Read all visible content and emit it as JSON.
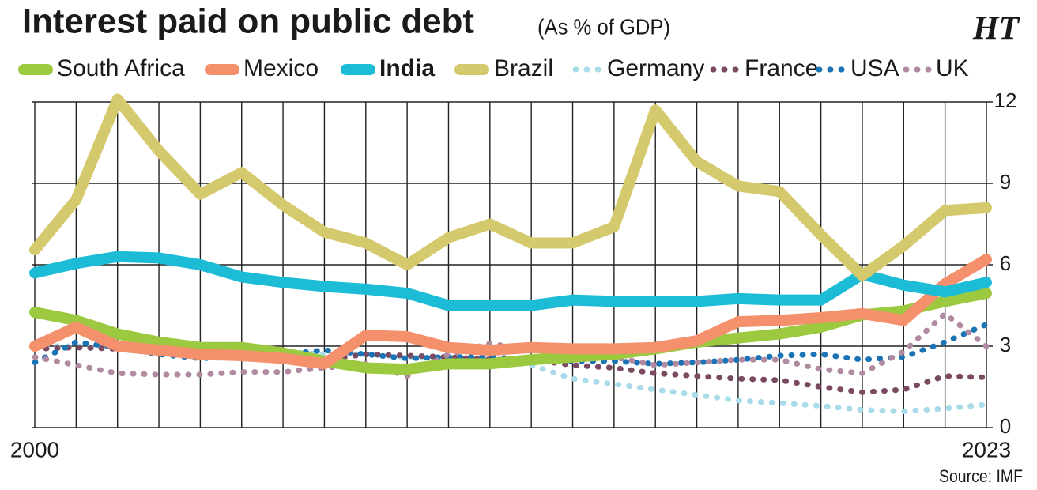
{
  "chart_data": {
    "type": "line",
    "title": "Interest paid on public debt",
    "subtitle": "(As % of GDP)",
    "logo": "HT",
    "source": "Source: IMF",
    "x": [
      2000,
      2001,
      2002,
      2003,
      2004,
      2005,
      2006,
      2007,
      2008,
      2009,
      2010,
      2011,
      2012,
      2013,
      2014,
      2015,
      2016,
      2017,
      2018,
      2019,
      2020,
      2021,
      2022,
      2023
    ],
    "xlim": [
      2000,
      2023
    ],
    "xticks": [
      2000,
      2023
    ],
    "ylim": [
      0,
      12
    ],
    "yticks": [
      0,
      3,
      6,
      9,
      12
    ],
    "grid": true,
    "series": [
      {
        "name": "South Africa",
        "color": "#9dc940",
        "dashed": false,
        "values": [
          4.25,
          3.95,
          3.45,
          3.15,
          2.95,
          2.95,
          2.75,
          2.45,
          2.2,
          2.15,
          2.35,
          2.35,
          2.5,
          2.6,
          2.7,
          2.9,
          3.15,
          3.3,
          3.45,
          3.7,
          4.15,
          4.3,
          4.65,
          4.95
        ]
      },
      {
        "name": "Mexico",
        "color": "#f4906b",
        "dashed": false,
        "values": [
          3.0,
          3.7,
          3.0,
          2.85,
          2.7,
          2.65,
          2.55,
          2.35,
          3.4,
          3.35,
          2.95,
          2.85,
          2.95,
          2.9,
          2.9,
          2.95,
          3.2,
          3.9,
          3.95,
          4.05,
          4.2,
          3.95,
          5.3,
          6.2
        ]
      },
      {
        "name": "India",
        "color": "#1cbcd6",
        "dashed": false,
        "bold": true,
        "values": [
          5.7,
          6.05,
          6.3,
          6.25,
          6.0,
          5.55,
          5.35,
          5.2,
          5.1,
          4.95,
          4.5,
          4.5,
          4.5,
          4.7,
          4.65,
          4.65,
          4.65,
          4.75,
          4.7,
          4.7,
          5.65,
          5.25,
          5.0,
          5.35
        ]
      },
      {
        "name": "Brazil",
        "color": "#d4c96c",
        "dashed": false,
        "values": [
          6.55,
          8.4,
          12.1,
          10.2,
          8.6,
          9.4,
          8.2,
          7.2,
          6.8,
          6.0,
          7.0,
          7.5,
          6.8,
          6.8,
          7.4,
          11.7,
          9.8,
          8.9,
          8.7,
          7.1,
          5.6,
          6.7,
          8.0,
          8.1
        ]
      },
      {
        "name": "Germany",
        "color": "#a9dbe8",
        "dashed": true,
        "values": [
          3.0,
          3.0,
          2.9,
          2.9,
          2.8,
          2.8,
          2.8,
          2.7,
          2.7,
          2.6,
          2.6,
          2.5,
          2.3,
          1.8,
          1.6,
          1.4,
          1.2,
          1.0,
          0.9,
          0.8,
          0.65,
          0.6,
          0.7,
          0.85
        ]
      },
      {
        "name": "France",
        "color": "#7a4a62",
        "dashed": true,
        "values": [
          2.9,
          2.95,
          2.9,
          2.8,
          2.75,
          2.7,
          2.6,
          2.5,
          2.7,
          2.65,
          2.6,
          2.5,
          2.5,
          2.3,
          2.2,
          2.0,
          1.9,
          1.8,
          1.75,
          1.5,
          1.3,
          1.4,
          1.9,
          1.85
        ]
      },
      {
        "name": "USA",
        "color": "#1a73b5",
        "dashed": true,
        "values": [
          2.4,
          3.15,
          2.95,
          2.7,
          2.55,
          2.6,
          2.7,
          2.85,
          2.7,
          2.55,
          2.6,
          2.6,
          2.5,
          2.45,
          2.45,
          2.35,
          2.4,
          2.5,
          2.65,
          2.7,
          2.5,
          2.6,
          3.15,
          3.8
        ]
      },
      {
        "name": "UK",
        "color": "#b08aa0",
        "dashed": true,
        "values": [
          2.6,
          2.3,
          2.0,
          1.95,
          1.95,
          2.05,
          2.05,
          2.2,
          2.35,
          1.9,
          2.7,
          3.1,
          2.85,
          2.7,
          2.6,
          2.3,
          2.4,
          2.5,
          2.5,
          2.15,
          2.0,
          2.8,
          4.2,
          3.0
        ]
      }
    ]
  }
}
